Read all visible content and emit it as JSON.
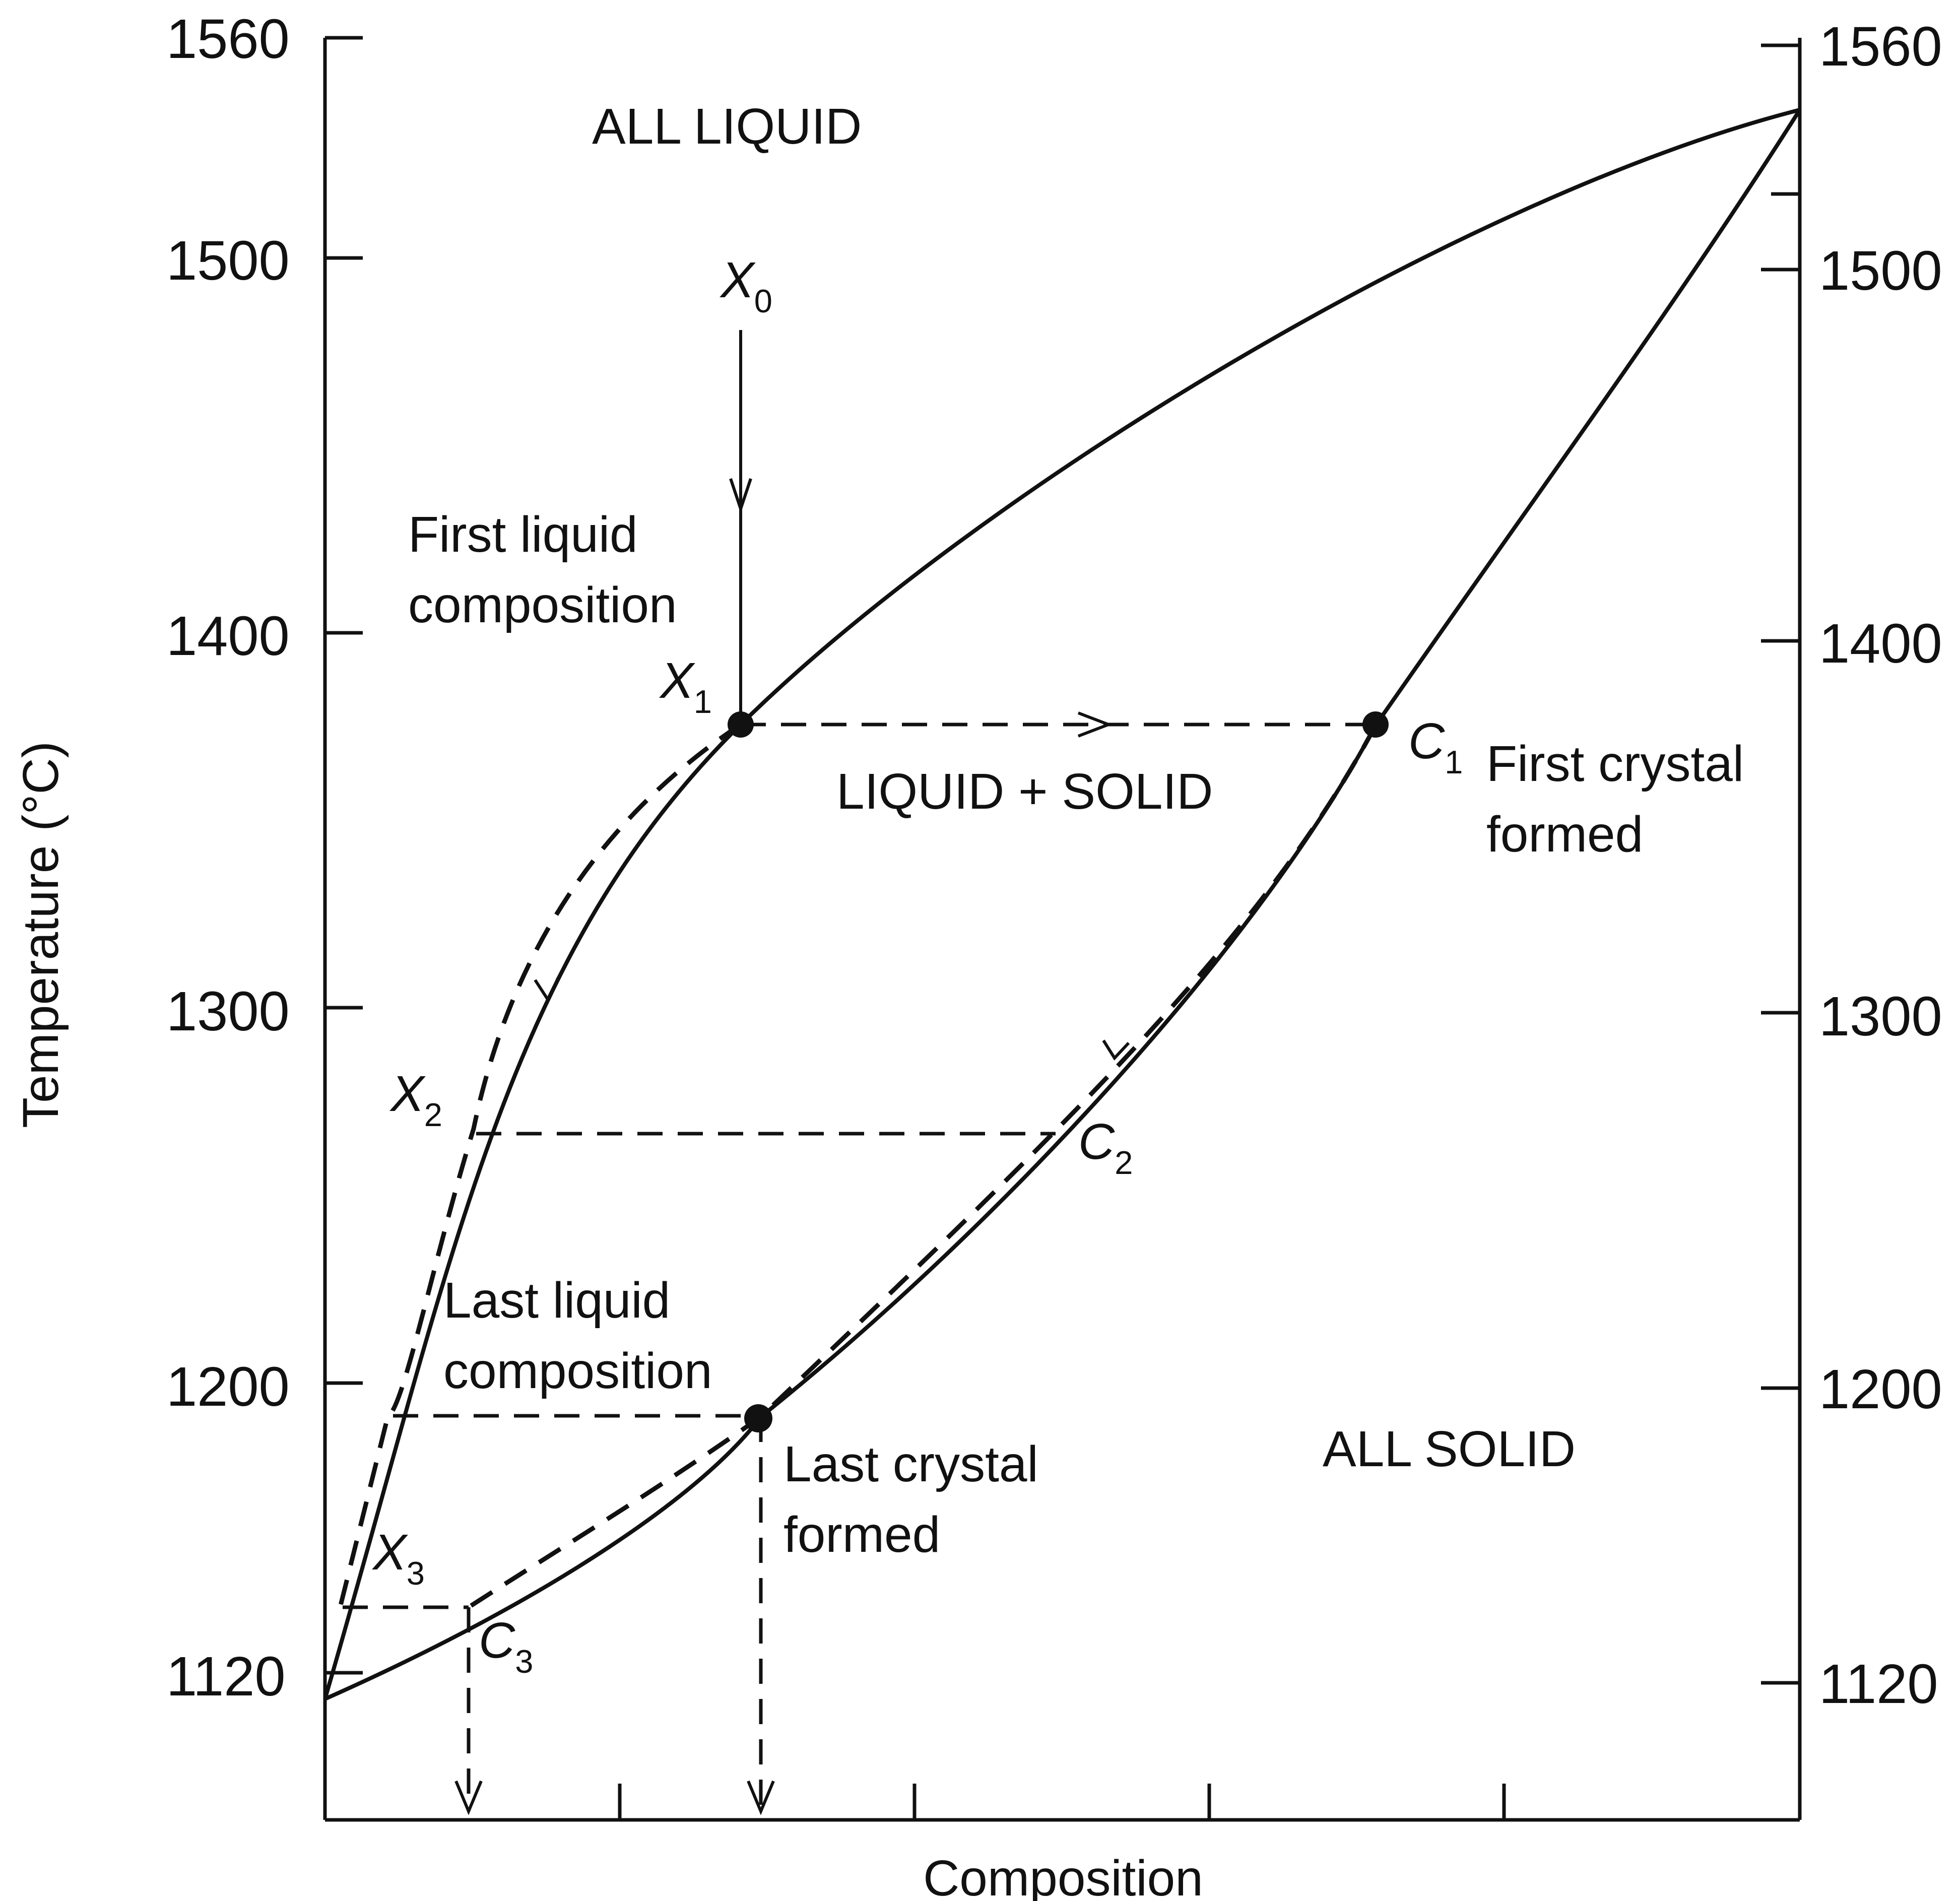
{
  "axes": {
    "y_title": "Temperature (°C)",
    "x_title": "Composition",
    "left_ticks": [
      "1560",
      "1500",
      "1400",
      "1300",
      "1200",
      "1120"
    ],
    "right_ticks": [
      "1560",
      "1500",
      "1400",
      "1300",
      "1200",
      "1120"
    ]
  },
  "regions": {
    "liquid": "ALL LIQUID",
    "mixed": "LIQUID + SOLID",
    "solid": "ALL SOLID"
  },
  "annotations": {
    "first_liquid_line1": "First liquid",
    "first_liquid_line2": "composition",
    "first_crystal_line1": "First crystal",
    "first_crystal_line2": "formed",
    "last_liquid_line1": "Last liquid",
    "last_liquid_line2": "composition",
    "last_crystal_line1": "Last crystal",
    "last_crystal_line2": "formed"
  },
  "points": {
    "x0": {
      "letter": "X",
      "sub": "0"
    },
    "x1": {
      "letter": "X",
      "sub": "1"
    },
    "x2": {
      "letter": "X",
      "sub": "2"
    },
    "x3": {
      "letter": "X",
      "sub": "3"
    },
    "c1": {
      "letter": "C",
      "sub": "1"
    },
    "c2": {
      "letter": "C",
      "sub": "2"
    },
    "c3": {
      "letter": "C",
      "sub": "3"
    }
  }
}
